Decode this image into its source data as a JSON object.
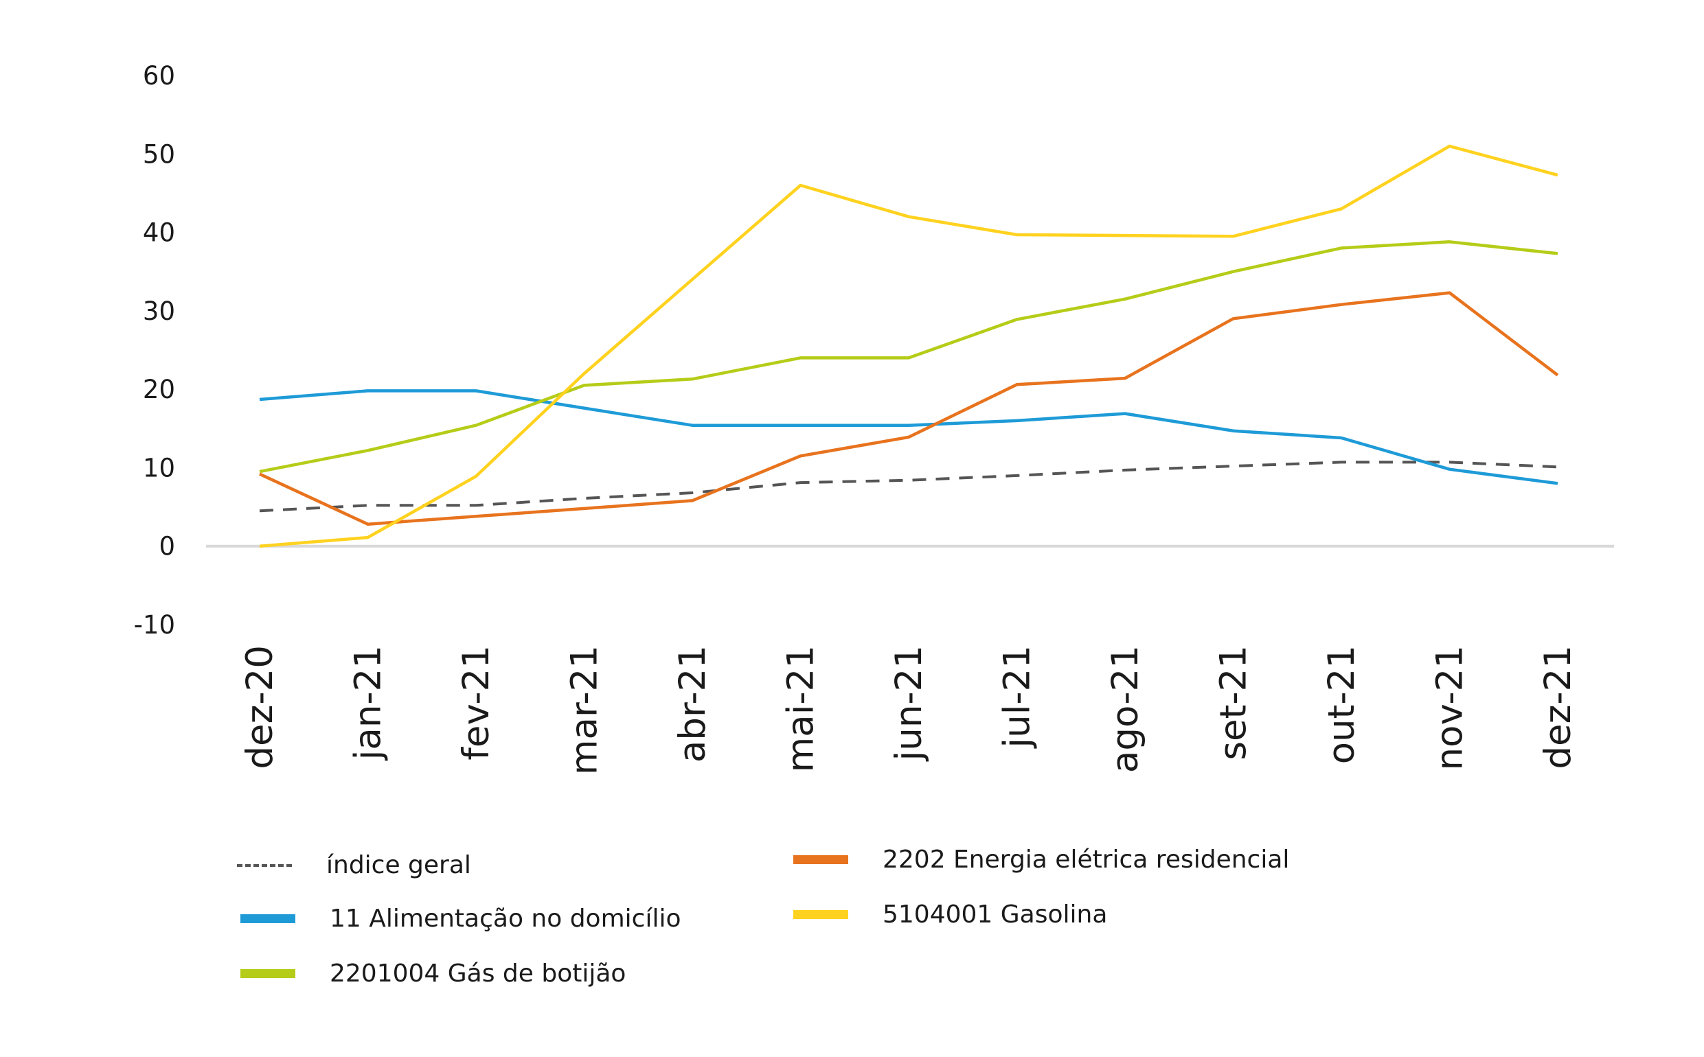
{
  "chart_data": {
    "type": "line",
    "categories": [
      "dez-20",
      "jan-21",
      "fev-21",
      "mar-21",
      "abr-21",
      "mai-21",
      "jun-21",
      "jul-21",
      "ago-21",
      "set-21",
      "out-21",
      "nov-21",
      "dez-21"
    ],
    "ylim": [
      -10,
      60
    ],
    "yticks": [
      "60",
      "50",
      "40",
      "30",
      "20",
      "10",
      "0",
      "-10"
    ],
    "grid": false,
    "legend_position": "bottom",
    "series": [
      {
        "name": "índice geral",
        "color": "#555555",
        "dash": true,
        "values": [
          4.5,
          5.2,
          5.2,
          6.1,
          6.8,
          8.1,
          8.4,
          9.0,
          9.7,
          10.2,
          10.7,
          10.7,
          10.1
        ]
      },
      {
        "name": "11 Alimentação no domicílio",
        "color": "#1E9BD7",
        "dash": false,
        "values": [
          18.7,
          19.8,
          19.8,
          17.6,
          15.4,
          15.4,
          15.4,
          16.0,
          16.9,
          14.7,
          13.8,
          9.8,
          8.0
        ]
      },
      {
        "name": "2201004 Gás de botijão",
        "color": "#B5CC18",
        "dash": false,
        "values": [
          9.5,
          12.2,
          15.4,
          20.5,
          21.3,
          24.0,
          24.0,
          28.9,
          31.5,
          35.0,
          38.0,
          38.8,
          37.3
        ]
      },
      {
        "name": "2202 Energia elétrica residencial",
        "color": "#E8731E",
        "dash": false,
        "values": [
          9.2,
          2.8,
          3.8,
          4.8,
          5.8,
          11.5,
          13.9,
          20.6,
          21.4,
          29.0,
          30.8,
          32.3,
          21.8
        ]
      },
      {
        "name": "5104001 Gasolina",
        "color": "#FFD21F",
        "dash": false,
        "values": [
          0.0,
          1.1,
          8.9,
          22.0,
          34.0,
          46.0,
          42.0,
          39.7,
          39.6,
          39.5,
          43.0,
          51.0,
          47.3
        ]
      }
    ]
  }
}
